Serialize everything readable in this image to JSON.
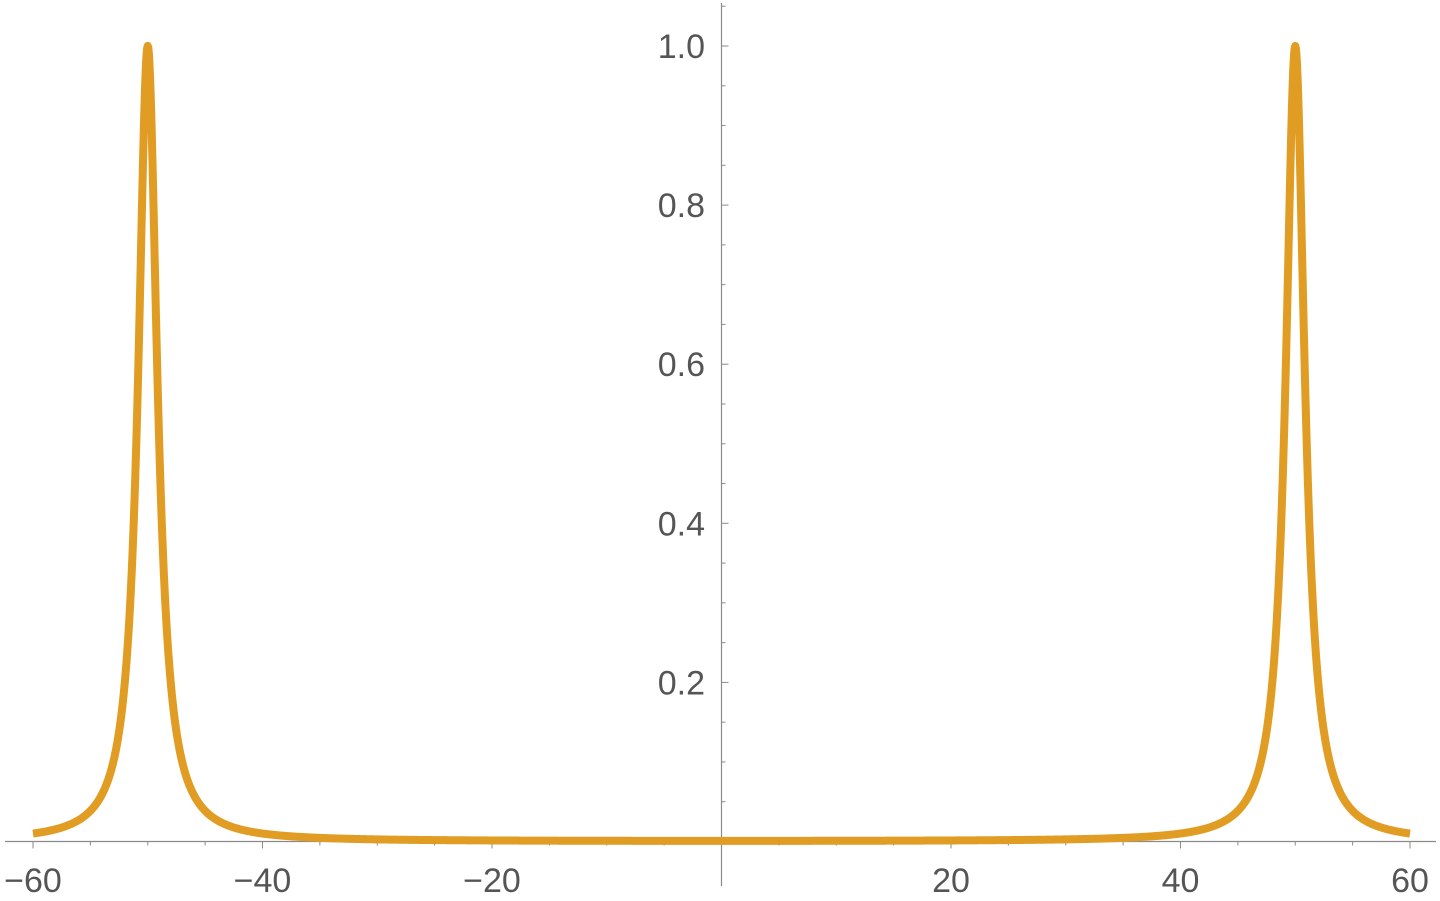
{
  "chart_data": {
    "type": "line",
    "title": "",
    "xlabel": "",
    "ylabel": "",
    "xlim": [
      -60,
      60
    ],
    "ylim": [
      0,
      1.05
    ],
    "grid": false,
    "legend": "none",
    "axes_origin": [
      0,
      0
    ],
    "x_major_ticks": [
      -60,
      -40,
      -20,
      20,
      40,
      60
    ],
    "x_tick_labels": [
      "−60",
      "−40",
      "−20",
      "20",
      "40",
      "60"
    ],
    "y_major_ticks": [
      0.2,
      0.4,
      0.6,
      0.8,
      1.0
    ],
    "y_tick_labels": [
      "0.2",
      "0.4",
      "0.6",
      "0.8",
      "1.0"
    ],
    "series": [
      {
        "color": "#E19C24",
        "function": "Lorentzian peaks at x = -50 and x = 50, peak height 1, half-width 1",
        "peaks": [
          {
            "x": -50,
            "y": 1.0
          },
          {
            "x": 50,
            "y": 1.0
          }
        ],
        "points": [
          [
            -60,
            0.0099
          ],
          [
            -58,
            0.0154
          ],
          [
            -56,
            0.027
          ],
          [
            -55,
            0.0385
          ],
          [
            -54,
            0.0588
          ],
          [
            -53,
            0.1
          ],
          [
            -52,
            0.2
          ],
          [
            -51.5,
            0.3077
          ],
          [
            -51,
            0.5
          ],
          [
            -50.5,
            0.8
          ],
          [
            -50,
            1.0
          ],
          [
            -49.5,
            0.8
          ],
          [
            -49,
            0.5
          ],
          [
            -48.5,
            0.3077
          ],
          [
            -48,
            0.2
          ],
          [
            -47,
            0.1
          ],
          [
            -46,
            0.0588
          ],
          [
            -45,
            0.0385
          ],
          [
            -44,
            0.027
          ],
          [
            -42,
            0.0154
          ],
          [
            -40,
            0.0099
          ],
          [
            -30,
            0.0025
          ],
          [
            -20,
            0.0011
          ],
          [
            -10,
            0.0006
          ],
          [
            0,
            0.0004
          ],
          [
            10,
            0.0006
          ],
          [
            20,
            0.0011
          ],
          [
            30,
            0.0025
          ],
          [
            40,
            0.0099
          ],
          [
            42,
            0.0154
          ],
          [
            44,
            0.027
          ],
          [
            45,
            0.0385
          ],
          [
            46,
            0.0588
          ],
          [
            47,
            0.1
          ],
          [
            48,
            0.2
          ],
          [
            48.5,
            0.3077
          ],
          [
            49,
            0.5
          ],
          [
            49.5,
            0.8
          ],
          [
            50,
            1.0
          ],
          [
            50.5,
            0.8
          ],
          [
            51,
            0.5
          ],
          [
            51.5,
            0.3077
          ],
          [
            52,
            0.2
          ],
          [
            53,
            0.1
          ],
          [
            54,
            0.0588
          ],
          [
            55,
            0.0385
          ],
          [
            56,
            0.027
          ],
          [
            58,
            0.0154
          ],
          [
            60,
            0.0099
          ]
        ]
      }
    ]
  }
}
